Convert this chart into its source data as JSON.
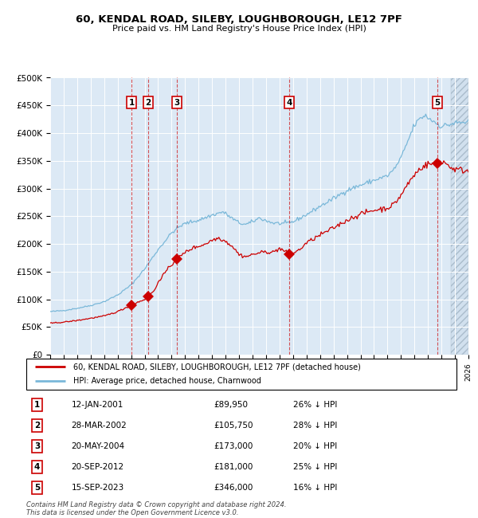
{
  "title": "60, KENDAL ROAD, SILEBY, LOUGHBOROUGH, LE12 7PF",
  "subtitle": "Price paid vs. HM Land Registry's House Price Index (HPI)",
  "background_color": "#dce9f5",
  "hpi_color": "#7ab8d9",
  "price_color": "#cc0000",
  "ylim": [
    0,
    500000
  ],
  "yticks": [
    0,
    50000,
    100000,
    150000,
    200000,
    250000,
    300000,
    350000,
    400000,
    450000,
    500000
  ],
  "ytick_labels": [
    "£0",
    "£50K",
    "£100K",
    "£150K",
    "£200K",
    "£250K",
    "£300K",
    "£350K",
    "£400K",
    "£450K",
    "£500K"
  ],
  "sales": [
    {
      "num": 1,
      "date": "12-JAN-2001",
      "price": 89950,
      "pct": "26%",
      "year_x": 2001.03
    },
    {
      "num": 2,
      "date": "28-MAR-2002",
      "price": 105750,
      "pct": "28%",
      "year_x": 2002.25
    },
    {
      "num": 3,
      "date": "20-MAY-2004",
      "price": 173000,
      "pct": "20%",
      "year_x": 2004.38
    },
    {
      "num": 4,
      "date": "20-SEP-2012",
      "price": 181000,
      "pct": "25%",
      "year_x": 2012.72
    },
    {
      "num": 5,
      "date": "15-SEP-2023",
      "price": 346000,
      "pct": "16%",
      "year_x": 2023.71
    }
  ],
  "legend_entries": [
    "60, KENDAL ROAD, SILEBY, LOUGHBOROUGH, LE12 7PF (detached house)",
    "HPI: Average price, detached house, Charnwood"
  ],
  "footer": "Contains HM Land Registry data © Crown copyright and database right 2024.\nThis data is licensed under the Open Government Licence v3.0.",
  "xmin": 1995,
  "xmax": 2026,
  "hatch_start": 2024.7
}
